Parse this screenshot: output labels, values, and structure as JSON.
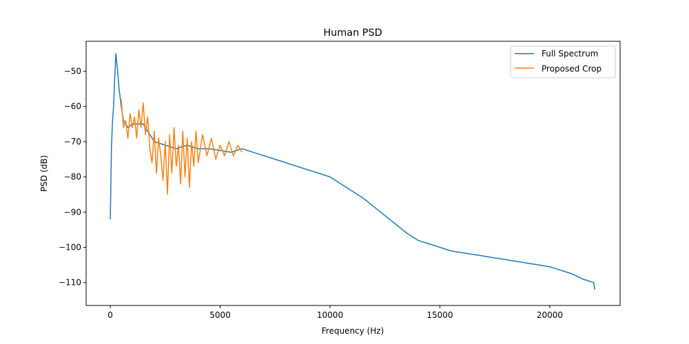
{
  "chart_data": {
    "type": "line",
    "title": "Human PSD",
    "xlabel": "Frequency (Hz)",
    "ylabel": "PSD (dB)",
    "xlim": [
      -1100,
      23200
    ],
    "ylim": [
      -116.5,
      -41.5
    ],
    "xticks": [
      0,
      5000,
      10000,
      15000,
      20000
    ],
    "yticks": [
      -50,
      -60,
      -70,
      -80,
      -90,
      -100,
      -110
    ],
    "grid": false,
    "legend_position": "upper right",
    "series": [
      {
        "name": "Full Spectrum",
        "color": "#1f77b4",
        "x": [
          0,
          50,
          100,
          150,
          200,
          250,
          300,
          350,
          400,
          500,
          600,
          800,
          1000,
          1500,
          2000,
          2500,
          3000,
          3500,
          4000,
          4500,
          5000,
          5500,
          6000,
          6500,
          7000,
          7500,
          8000,
          8500,
          9000,
          9500,
          10000,
          10500,
          11000,
          11500,
          12000,
          12500,
          13000,
          13500,
          14000,
          14500,
          15000,
          15500,
          16000,
          16500,
          17000,
          17500,
          18000,
          18500,
          19000,
          19500,
          20000,
          20500,
          21000,
          21500,
          22000,
          22050
        ],
        "y": [
          -92,
          -72,
          -64,
          -60,
          -52,
          -45,
          -48,
          -51,
          -55,
          -60,
          -64,
          -66,
          -65,
          -65,
          -70,
          -71,
          -72,
          -71,
          -72,
          -72,
          -72.5,
          -73,
          -72,
          -73,
          -74,
          -75,
          -76,
          -77,
          -78,
          -79,
          -80,
          -82,
          -84,
          -86,
          -88.5,
          -91,
          -93.5,
          -96,
          -98,
          -99,
          -100,
          -101,
          -101.5,
          -102,
          -102.5,
          -103,
          -103.5,
          -104,
          -104.5,
          -105,
          -105.5,
          -106.5,
          -107.5,
          -109,
          -110,
          -112
        ]
      },
      {
        "name": "Proposed Crop",
        "color": "#ff7f0e",
        "x": [
          500,
          600,
          700,
          800,
          900,
          1000,
          1100,
          1200,
          1300,
          1400,
          1500,
          1600,
          1700,
          1800,
          1900,
          2000,
          2100,
          2200,
          2300,
          2400,
          2500,
          2600,
          2700,
          2800,
          2900,
          3000,
          3100,
          3200,
          3300,
          3400,
          3500,
          3600,
          3700,
          3800,
          3900,
          4000,
          4200,
          4400,
          4600,
          4800,
          5000,
          5200,
          5400,
          5600,
          5800,
          6000
        ],
        "y": [
          -58,
          -66,
          -64,
          -69,
          -62,
          -66,
          -63,
          -69,
          -61,
          -66,
          -59,
          -68,
          -63,
          -72,
          -76,
          -67,
          -79,
          -69,
          -74,
          -81,
          -70,
          -85,
          -68,
          -79,
          -66,
          -77,
          -71,
          -82,
          -67,
          -80,
          -69,
          -83,
          -70,
          -77,
          -67,
          -76,
          -68,
          -74,
          -69,
          -75,
          -71,
          -74,
          -70,
          -74,
          -71,
          -73
        ]
      }
    ]
  }
}
